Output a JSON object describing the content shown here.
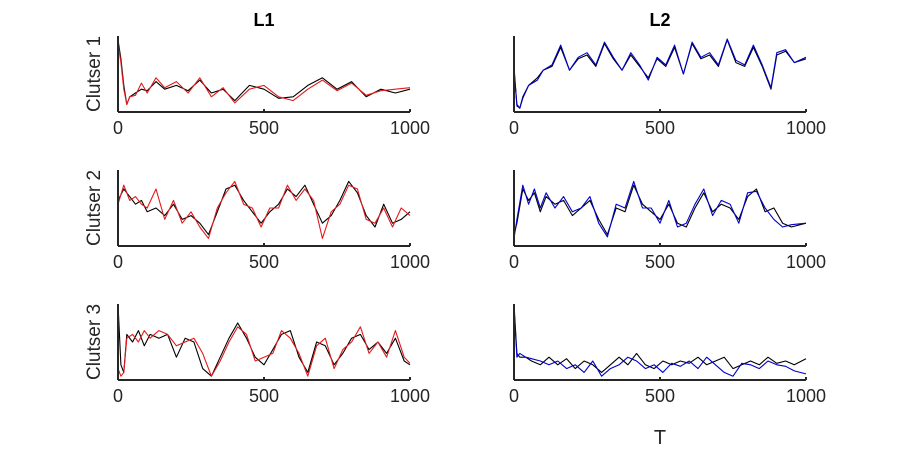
{
  "chart_data": {
    "type": "line",
    "layout": "3x2 grid of small multiples",
    "column_titles": [
      "L1",
      "L2"
    ],
    "row_labels": [
      "Clutser 1",
      "Clutser 2",
      "Clutser 3"
    ],
    "xlabel": "T",
    "xlim": [
      0,
      1000
    ],
    "xticks": [
      "0",
      "500",
      "1000"
    ],
    "yticks": "none",
    "grid": false,
    "legend": "none",
    "colors": {
      "reference": "#000000",
      "L1": "#e31a1c",
      "L2": "#0000cc"
    },
    "panels": [
      {
        "row": 0,
        "col": 0,
        "ylim": [
          0,
          1
        ],
        "series": [
          {
            "color": "#000000",
            "x": [
              0,
              10,
              20,
              30,
              40,
              60,
              80,
              100,
              130,
              160,
              200,
              240,
              280,
              320,
              360,
              400,
              450,
              500,
              550,
              600,
              650,
              700,
              750,
              800,
              850,
              900,
              950,
              1000
            ],
            "y": [
              0.95,
              0.7,
              0.35,
              0.1,
              0.2,
              0.25,
              0.3,
              0.28,
              0.4,
              0.3,
              0.35,
              0.28,
              0.42,
              0.25,
              0.3,
              0.15,
              0.35,
              0.3,
              0.18,
              0.2,
              0.35,
              0.45,
              0.3,
              0.4,
              0.2,
              0.3,
              0.25,
              0.3
            ]
          },
          {
            "color": "#e31a1c",
            "x": [
              0,
              10,
              20,
              30,
              40,
              60,
              80,
              100,
              130,
              160,
              200,
              240,
              280,
              320,
              360,
              400,
              450,
              500,
              550,
              600,
              650,
              700,
              750,
              800,
              850,
              900,
              950,
              1000
            ],
            "y": [
              0.9,
              0.65,
              0.3,
              0.1,
              0.2,
              0.22,
              0.38,
              0.25,
              0.45,
              0.32,
              0.4,
              0.25,
              0.45,
              0.2,
              0.32,
              0.12,
              0.3,
              0.35,
              0.2,
              0.15,
              0.3,
              0.42,
              0.28,
              0.38,
              0.22,
              0.28,
              0.3,
              0.32
            ]
          }
        ]
      },
      {
        "row": 0,
        "col": 1,
        "ylim": [
          0,
          1
        ],
        "series": [
          {
            "color": "#000000",
            "x": [
              0,
              10,
              20,
              30,
              50,
              80,
              100,
              130,
              160,
              190,
              220,
              250,
              280,
              310,
              340,
              370,
              400,
              430,
              460,
              490,
              520,
              550,
              580,
              610,
              640,
              670,
              700,
              730,
              760,
              790,
              820,
              850,
              880,
              900,
              930,
              960,
              1000
            ],
            "y": [
              0.55,
              0.1,
              0.05,
              0.2,
              0.35,
              0.45,
              0.55,
              0.6,
              0.85,
              0.55,
              0.7,
              0.75,
              0.6,
              0.9,
              0.7,
              0.55,
              0.75,
              0.6,
              0.45,
              0.7,
              0.6,
              0.85,
              0.5,
              0.9,
              0.7,
              0.75,
              0.6,
              0.95,
              0.65,
              0.6,
              0.85,
              0.6,
              0.3,
              0.75,
              0.8,
              0.65,
              0.7
            ]
          },
          {
            "color": "#0000cc",
            "x": [
              0,
              10,
              20,
              30,
              50,
              80,
              100,
              130,
              160,
              190,
              220,
              250,
              280,
              310,
              340,
              370,
              400,
              430,
              460,
              490,
              520,
              550,
              580,
              610,
              640,
              670,
              700,
              730,
              760,
              790,
              820,
              850,
              880,
              900,
              930,
              960,
              1000
            ],
            "y": [
              0.6,
              0.08,
              0.05,
              0.18,
              0.35,
              0.42,
              0.55,
              0.62,
              0.88,
              0.55,
              0.72,
              0.78,
              0.62,
              0.92,
              0.72,
              0.55,
              0.78,
              0.62,
              0.42,
              0.72,
              0.62,
              0.88,
              0.5,
              0.92,
              0.72,
              0.78,
              0.62,
              0.96,
              0.68,
              0.62,
              0.88,
              0.62,
              0.32,
              0.78,
              0.82,
              0.65,
              0.72
            ]
          }
        ]
      },
      {
        "row": 1,
        "col": 0,
        "ylim": [
          0,
          1
        ],
        "series": [
          {
            "color": "#000000",
            "x": [
              0,
              20,
              40,
              60,
              80,
              100,
              130,
              160,
              190,
              220,
              250,
              280,
              310,
              340,
              370,
              400,
              430,
              460,
              490,
              520,
              550,
              580,
              610,
              640,
              670,
              700,
              730,
              760,
              790,
              820,
              850,
              880,
              910,
              940,
              970,
              1000
            ],
            "y": [
              0.6,
              0.75,
              0.65,
              0.55,
              0.6,
              0.45,
              0.5,
              0.4,
              0.55,
              0.35,
              0.4,
              0.3,
              0.15,
              0.45,
              0.75,
              0.8,
              0.6,
              0.45,
              0.3,
              0.45,
              0.55,
              0.75,
              0.65,
              0.8,
              0.55,
              0.3,
              0.4,
              0.6,
              0.85,
              0.7,
              0.4,
              0.25,
              0.55,
              0.3,
              0.35,
              0.45
            ]
          },
          {
            "color": "#e31a1c",
            "x": [
              0,
              20,
              40,
              60,
              80,
              100,
              130,
              160,
              190,
              220,
              250,
              280,
              310,
              340,
              370,
              400,
              430,
              460,
              490,
              520,
              550,
              580,
              610,
              640,
              670,
              700,
              730,
              760,
              790,
              820,
              850,
              880,
              910,
              940,
              970,
              1000
            ],
            "y": [
              0.55,
              0.8,
              0.6,
              0.65,
              0.55,
              0.5,
              0.75,
              0.35,
              0.6,
              0.3,
              0.45,
              0.25,
              0.1,
              0.5,
              0.7,
              0.85,
              0.55,
              0.5,
              0.25,
              0.5,
              0.5,
              0.8,
              0.6,
              0.75,
              0.6,
              0.1,
              0.45,
              0.55,
              0.8,
              0.75,
              0.35,
              0.3,
              0.5,
              0.25,
              0.5,
              0.4
            ]
          }
        ]
      },
      {
        "row": 1,
        "col": 1,
        "ylim": [
          0,
          1
        ],
        "series": [
          {
            "color": "#000000",
            "x": [
              0,
              10,
              30,
              50,
              70,
              90,
              110,
              140,
              170,
              200,
              230,
              260,
              290,
              320,
              350,
              380,
              410,
              440,
              470,
              500,
              530,
              560,
              590,
              620,
              650,
              680,
              710,
              740,
              770,
              800,
              830,
              860,
              890,
              920,
              950,
              1000
            ],
            "y": [
              0.15,
              0.3,
              0.75,
              0.6,
              0.7,
              0.45,
              0.65,
              0.55,
              0.6,
              0.4,
              0.5,
              0.6,
              0.35,
              0.15,
              0.5,
              0.45,
              0.8,
              0.55,
              0.45,
              0.35,
              0.55,
              0.3,
              0.25,
              0.5,
              0.7,
              0.45,
              0.55,
              0.5,
              0.35,
              0.65,
              0.75,
              0.45,
              0.5,
              0.3,
              0.25,
              0.3
            ]
          },
          {
            "color": "#0000cc",
            "x": [
              0,
              10,
              30,
              50,
              70,
              90,
              110,
              140,
              170,
              200,
              230,
              260,
              290,
              320,
              350,
              380,
              410,
              440,
              470,
              500,
              530,
              560,
              590,
              620,
              650,
              680,
              710,
              740,
              770,
              800,
              830,
              860,
              890,
              920,
              950,
              1000
            ],
            "y": [
              0.1,
              0.35,
              0.8,
              0.55,
              0.75,
              0.5,
              0.7,
              0.5,
              0.65,
              0.45,
              0.5,
              0.65,
              0.3,
              0.12,
              0.55,
              0.5,
              0.85,
              0.5,
              0.5,
              0.3,
              0.6,
              0.25,
              0.3,
              0.55,
              0.75,
              0.4,
              0.6,
              0.55,
              0.3,
              0.7,
              0.72,
              0.5,
              0.35,
              0.25,
              0.28,
              0.3
            ]
          }
        ]
      },
      {
        "row": 2,
        "col": 0,
        "ylim": [
          0,
          1
        ],
        "series": [
          {
            "color": "#000000",
            "x": [
              0,
              10,
              20,
              30,
              50,
              70,
              90,
              110,
              140,
              170,
              200,
              230,
              260,
              290,
              320,
              350,
              380,
              410,
              440,
              470,
              500,
              530,
              560,
              590,
              620,
              650,
              680,
              710,
              740,
              770,
              800,
              830,
              860,
              890,
              920,
              950,
              980,
              1000
            ],
            "y": [
              1.0,
              0.2,
              0.1,
              0.6,
              0.5,
              0.65,
              0.45,
              0.6,
              0.55,
              0.6,
              0.3,
              0.55,
              0.5,
              0.15,
              0.05,
              0.3,
              0.55,
              0.75,
              0.55,
              0.3,
              0.2,
              0.4,
              0.6,
              0.65,
              0.3,
              0.1,
              0.5,
              0.45,
              0.2,
              0.35,
              0.55,
              0.6,
              0.4,
              0.5,
              0.35,
              0.55,
              0.25,
              0.2
            ]
          },
          {
            "color": "#e31a1c",
            "x": [
              0,
              10,
              20,
              30,
              50,
              70,
              90,
              110,
              140,
              170,
              200,
              230,
              260,
              290,
              320,
              350,
              380,
              410,
              440,
              470,
              500,
              530,
              560,
              590,
              620,
              650,
              680,
              710,
              740,
              770,
              800,
              830,
              860,
              890,
              920,
              950,
              980,
              1000
            ],
            "y": [
              0.15,
              0.05,
              0.1,
              0.55,
              0.6,
              0.5,
              0.65,
              0.55,
              0.65,
              0.6,
              0.45,
              0.5,
              0.55,
              0.35,
              0.05,
              0.25,
              0.5,
              0.7,
              0.6,
              0.25,
              0.3,
              0.35,
              0.65,
              0.55,
              0.35,
              0.05,
              0.45,
              0.55,
              0.15,
              0.4,
              0.5,
              0.7,
              0.35,
              0.5,
              0.3,
              0.65,
              0.3,
              0.22
            ]
          }
        ]
      },
      {
        "row": 2,
        "col": 1,
        "ylim": [
          0,
          1
        ],
        "series": [
          {
            "color": "#000000",
            "x": [
              0,
              10,
              20,
              40,
              60,
              90,
              120,
              150,
              180,
              210,
              240,
              270,
              300,
              330,
              360,
              390,
              420,
              450,
              480,
              510,
              540,
              570,
              600,
              630,
              660,
              690,
              720,
              750,
              780,
              810,
              840,
              870,
              900,
              930,
              960,
              1000
            ],
            "y": [
              1.0,
              0.35,
              0.3,
              0.3,
              0.25,
              0.2,
              0.3,
              0.2,
              0.28,
              0.15,
              0.25,
              0.2,
              0.1,
              0.2,
              0.3,
              0.2,
              0.35,
              0.2,
              0.15,
              0.25,
              0.2,
              0.25,
              0.22,
              0.3,
              0.2,
              0.25,
              0.3,
              0.15,
              0.2,
              0.25,
              0.2,
              0.3,
              0.22,
              0.25,
              0.2,
              0.28
            ]
          },
          {
            "color": "#0000cc",
            "x": [
              0,
              10,
              20,
              40,
              60,
              90,
              120,
              150,
              180,
              210,
              240,
              270,
              300,
              330,
              360,
              390,
              420,
              450,
              480,
              510,
              540,
              570,
              600,
              630,
              660,
              690,
              720,
              750,
              780,
              810,
              840,
              870,
              900,
              930,
              960,
              1000
            ],
            "y": [
              0.95,
              0.3,
              0.35,
              0.3,
              0.28,
              0.25,
              0.2,
              0.25,
              0.15,
              0.2,
              0.1,
              0.25,
              0.05,
              0.15,
              0.2,
              0.3,
              0.25,
              0.15,
              0.2,
              0.1,
              0.22,
              0.18,
              0.25,
              0.15,
              0.3,
              0.2,
              0.1,
              0.05,
              0.22,
              0.2,
              0.15,
              0.25,
              0.2,
              0.18,
              0.12,
              0.08
            ]
          }
        ]
      }
    ]
  }
}
